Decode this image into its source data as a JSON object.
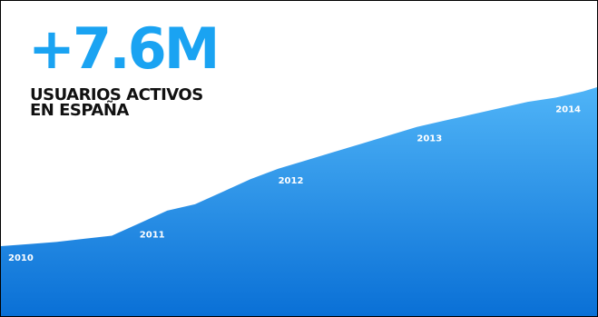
{
  "headline": "+7.6M",
  "subtitle": [
    "USUARIOS ACTIVOS",
    "EN ESPAÑA"
  ],
  "colors": {
    "headline": "#1aa3f2",
    "area_top": "#4fb4f7",
    "area_bottom": "#0a70d6",
    "subtitle": "#111111"
  },
  "chart_data": {
    "type": "area",
    "x": [
      2010.0,
      2010.2,
      2010.4,
      2010.6,
      2010.8,
      2011.0,
      2011.2,
      2011.4,
      2011.6,
      2011.8,
      2012.0,
      2012.2,
      2012.4,
      2012.6,
      2012.8,
      2013.0,
      2013.2,
      2013.4,
      2013.6,
      2013.8,
      2014.0,
      2014.2,
      2014.3
    ],
    "values": [
      0.0,
      0.1,
      0.2,
      0.35,
      0.5,
      1.1,
      1.7,
      2.0,
      2.6,
      3.2,
      3.7,
      4.1,
      4.5,
      4.9,
      5.3,
      5.7,
      6.0,
      6.3,
      6.6,
      6.9,
      7.1,
      7.4,
      7.6
    ],
    "xlim": [
      2010.0,
      2014.3
    ],
    "ylim": [
      0,
      7.6
    ],
    "grid": false,
    "annotations": [
      {
        "label": "2010",
        "x": 2010.0,
        "y": 0.0
      },
      {
        "label": "2011",
        "x": 2011.0,
        "y": 1.1
      },
      {
        "label": "2012",
        "x": 2012.0,
        "y": 3.7
      },
      {
        "label": "2013",
        "x": 2013.0,
        "y": 5.7
      },
      {
        "label": "2014",
        "x": 2014.0,
        "y": 7.1
      }
    ]
  }
}
